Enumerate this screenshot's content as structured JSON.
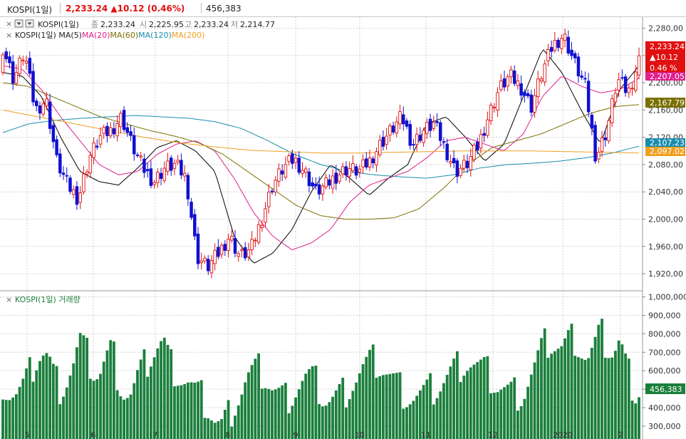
{
  "header": {
    "symbol": "KOSPI(1일)",
    "price": "2,233.24",
    "change": "▲10.12",
    "change_pct": "(0.46%)",
    "volume": "456,383"
  },
  "legend_price": {
    "close_mark": "종",
    "close": "2,233.24",
    "open_mark": "시",
    "open": "2,225.95",
    "high_mark": "고",
    "high": "2,233.24",
    "low_mark": "저",
    "low": "2,214.77",
    "series_name": "KOSPI(1일)",
    "ma_prefix": "KOSPI(1일) MA(5)",
    "ma20": "MA(20)",
    "ma60": "MA(60)",
    "ma120": "MA(120)",
    "ma200": "MA(200)"
  },
  "legend_volume": {
    "title": "KOSPI(1일) 거래량"
  },
  "badges": {
    "price": "2,233.24",
    "change": "▲10.12",
    "pct": "0.46 %",
    "ma20": "2,207.05",
    "ma60": "2,167.79",
    "ma120": "2,107.23",
    "ma200": "2,097.02",
    "volume": "456,383"
  },
  "colors": {
    "up": "#e01010",
    "down": "#1010d0",
    "ma5": "#000000",
    "ma20": "#e0208c",
    "ma60": "#7a7000",
    "ma120": "#1a8cae",
    "ma200": "#f0a020",
    "volume": "#1b7f3c",
    "grid": "#d0d0d0"
  },
  "chart_data": {
    "type": "candlestick",
    "x_ticks": [
      "5",
      "6",
      "7",
      "8",
      "9",
      "10",
      "11",
      "12",
      "2020",
      "2"
    ],
    "price_axis": {
      "ylim": [
        1895,
        2290
      ],
      "ticks": [
        1920,
        1960,
        2000,
        2040,
        2080,
        2120,
        2160,
        2200,
        2240,
        2280
      ],
      "tick_labels": [
        "1,920,00",
        "1,960,00",
        "2,000,00",
        "2,040,00",
        "2,080,00",
        "2,120,00",
        "2,160,00",
        "2,200,00",
        "2,240,00",
        "2,280,00"
      ]
    },
    "volume_axis": {
      "ylim": [
        230000,
        1010000
      ],
      "ticks": [
        300000,
        400000,
        500000,
        600000,
        700000,
        800000,
        900000,
        1000000
      ],
      "tick_labels": [
        "300,000",
        "400,000",
        "500,000",
        "600,000",
        "700,000",
        "800,000",
        "900,000",
        "1,000,000"
      ]
    },
    "candles_start_month": "2019-04",
    "candle_anchors": [
      [
        2215,
        2252
      ],
      [
        2185,
        2205
      ],
      [
        2200,
        2245
      ],
      [
        2190,
        2160
      ],
      [
        2130,
        2175
      ],
      [
        2140,
        2085
      ],
      [
        2080,
        2050
      ],
      [
        2055,
        2030
      ],
      [
        2025,
        2090
      ],
      [
        2085,
        2120
      ],
      [
        2120,
        2130
      ],
      [
        2128,
        2150
      ],
      [
        2140,
        2108
      ],
      [
        2108,
        2075
      ],
      [
        2078,
        2055
      ],
      [
        2040,
        2075
      ],
      [
        2072,
        2080
      ],
      [
        2080,
        2060
      ],
      [
        1995,
        1945
      ],
      [
        1940,
        1930
      ],
      [
        1930,
        1950
      ],
      [
        1950,
        1975
      ],
      [
        1975,
        1945
      ],
      [
        1945,
        1955
      ],
      [
        1960,
        2000
      ],
      [
        2000,
        2050
      ],
      [
        2050,
        2075
      ],
      [
        2075,
        2088
      ],
      [
        2088,
        2070
      ],
      [
        2070,
        2040
      ],
      [
        2035,
        2050
      ],
      [
        2050,
        2065
      ],
      [
        2065,
        2075
      ],
      [
        2075,
        2070
      ],
      [
        2075,
        2085
      ],
      [
        2090,
        2110
      ],
      [
        2110,
        2130
      ],
      [
        2130,
        2150
      ],
      [
        2145,
        2110
      ],
      [
        2110,
        2130
      ],
      [
        2130,
        2140
      ],
      [
        2140,
        2105
      ],
      [
        2100,
        2070
      ],
      [
        2070,
        2080
      ],
      [
        2080,
        2105
      ],
      [
        2110,
        2150
      ],
      [
        2150,
        2190
      ],
      [
        2190,
        2210
      ],
      [
        2205,
        2195
      ],
      [
        2195,
        2165
      ],
      [
        2170,
        2215
      ],
      [
        2215,
        2255
      ],
      [
        2250,
        2270
      ],
      [
        2260,
        2230
      ],
      [
        2210,
        2195
      ],
      [
        2165,
        2090
      ],
      [
        2100,
        2130
      ],
      [
        2140,
        2205
      ],
      [
        2205,
        2185
      ],
      [
        2200,
        2233
      ]
    ],
    "ma_anchors": {
      "ma5": [
        2215,
        2210,
        2180,
        2120,
        2070,
        2055,
        2050,
        2075,
        2105,
        2115,
        2100,
        2070,
        1975,
        1935,
        1950,
        1985,
        2040,
        2080,
        2060,
        2035,
        2060,
        2080,
        2140,
        2150,
        2120,
        2085,
        2110,
        2180,
        2250,
        2215,
        2160,
        2110,
        2190,
        2225
      ],
      "ma20": [
        2225,
        2220,
        2190,
        2150,
        2115,
        2080,
        2065,
        2070,
        2095,
        2110,
        2115,
        2100,
        2060,
        2010,
        1975,
        1955,
        1965,
        1985,
        2025,
        2050,
        2060,
        2070,
        2090,
        2115,
        2120,
        2110,
        2100,
        2125,
        2180,
        2210,
        2195,
        2185,
        2190,
        2207
      ],
      "ma60": [
        2200,
        2195,
        2180,
        2165,
        2150,
        2140,
        2130,
        2122,
        2112,
        2095,
        2070,
        2045,
        2020,
        2005,
        2000,
        2000,
        2002,
        2015,
        2045,
        2080,
        2105,
        2115,
        2125,
        2140,
        2155,
        2165,
        2168
      ],
      "ma120": [
        2127,
        2140,
        2145,
        2148,
        2150,
        2152,
        2150,
        2148,
        2143,
        2133,
        2115,
        2095,
        2080,
        2070,
        2065,
        2062,
        2060,
        2065,
        2075,
        2080,
        2082,
        2085,
        2090,
        2097,
        2107
      ],
      "ma200": [
        2160,
        2150,
        2140,
        2130,
        2120,
        2112,
        2106,
        2101,
        2099,
        2097,
        2097,
        2098,
        2099,
        2100,
        2100,
        2100,
        2099,
        2098,
        2097
      ]
    },
    "volume_anchors": [
      540000,
      490000,
      470000,
      500000,
      560000,
      650000,
      700000,
      680000,
      560000,
      510000,
      560000,
      640000,
      760000,
      690000,
      610000,
      580000,
      660000,
      720000,
      560000,
      480000,
      470000,
      560000,
      620000,
      680000,
      730000,
      760000,
      640000,
      600000,
      560000,
      530000,
      480000,
      450000,
      400000,
      330000,
      300000,
      350000,
      420000,
      480000,
      560000,
      590000,
      600000,
      560000,
      500000,
      470000,
      450000,
      480000,
      520000,
      560000,
      560000,
      520000,
      450000,
      440000,
      460000,
      480000,
      520000,
      560000,
      610000,
      640000,
      650000,
      620000,
      580000,
      540000,
      500000,
      470000,
      460000,
      470000,
      480000,
      500000,
      520000,
      560000,
      600000,
      630000,
      650000,
      640000,
      620000,
      600000,
      560000,
      520000,
      500000,
      480000,
      480000,
      480000,
      560000,
      640000,
      720000,
      760000,
      740000,
      720000,
      760000,
      780000,
      720000,
      660000,
      720000,
      800000,
      740000,
      700000,
      760000,
      620000,
      530000,
      456383
    ]
  }
}
